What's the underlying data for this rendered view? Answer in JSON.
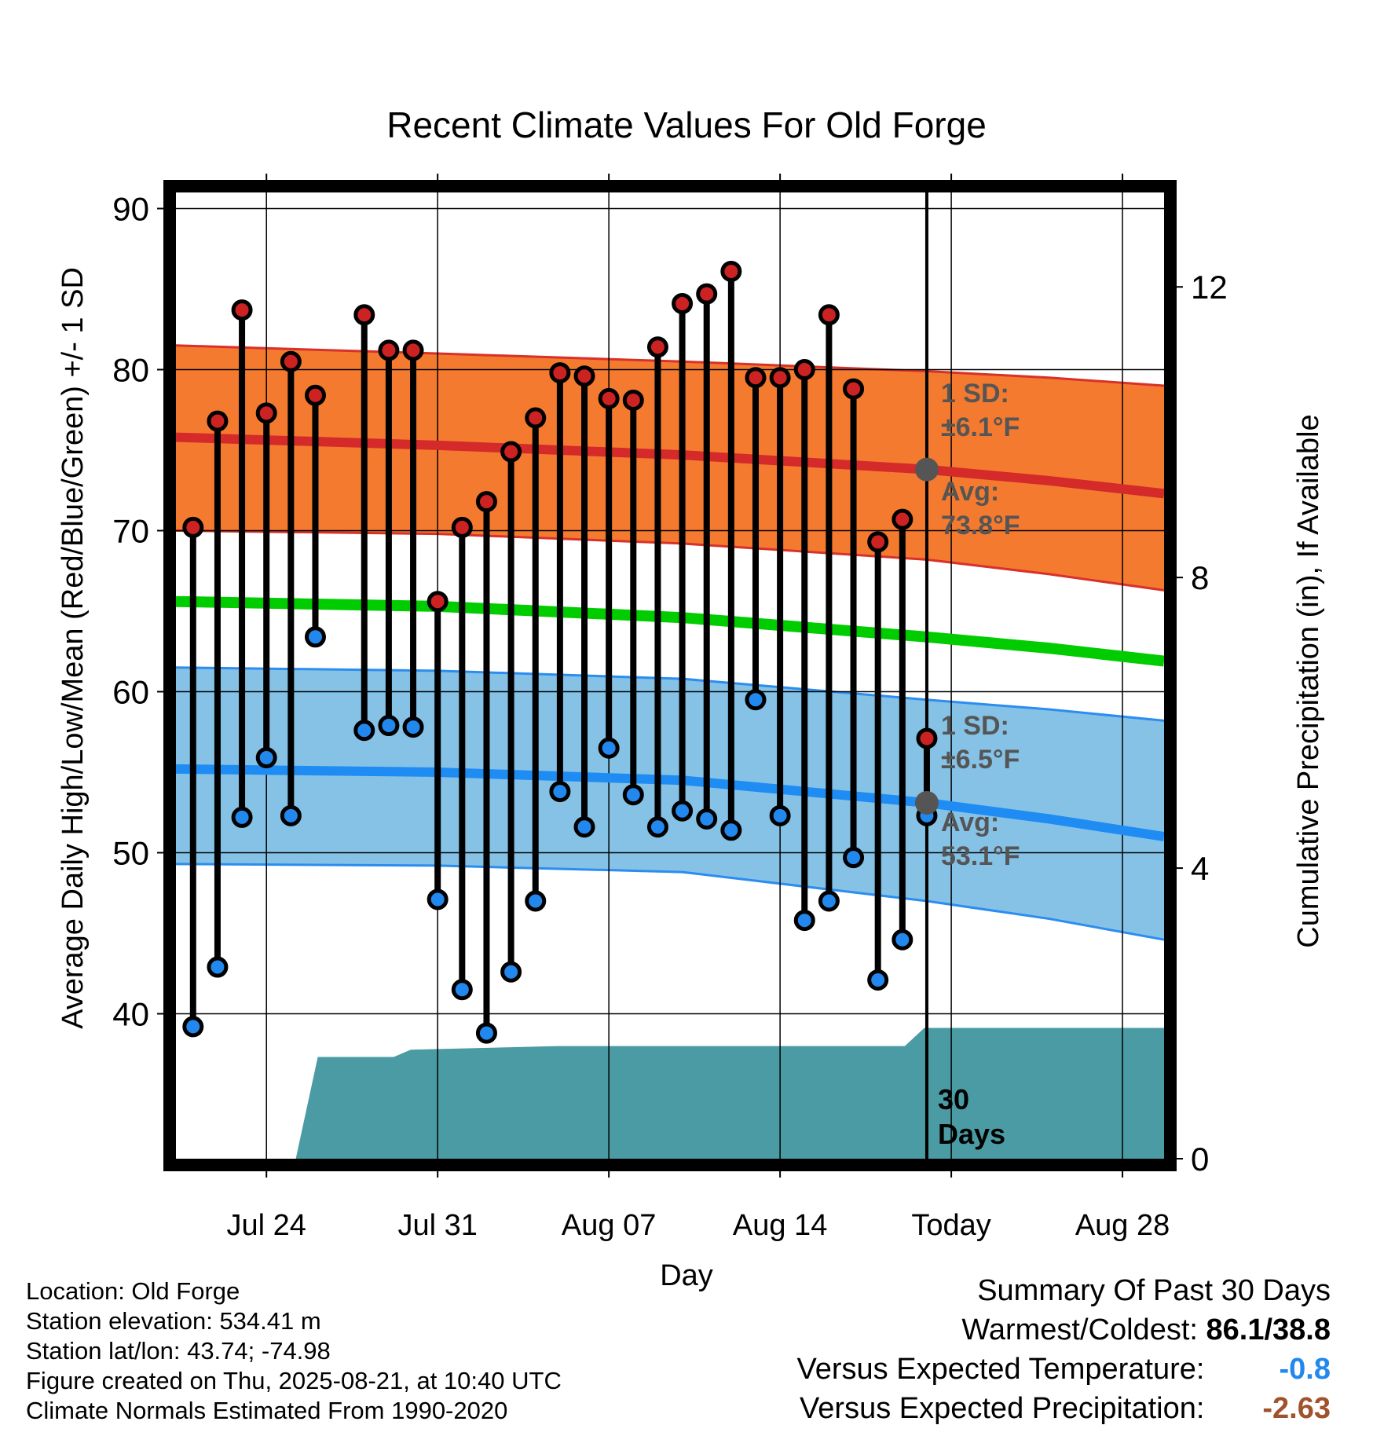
{
  "chart_data": {
    "type": "line",
    "title": "Recent Climate Values For Old Forge",
    "xlabel": "Day",
    "ylabel": "Average Daily High/Low/Mean (Red/Blue/Green) +/- 1 SD",
    "ylabel2": "Cumulative Precipitation (in), If Available",
    "ylim": [
      31,
      91
    ],
    "y2lim": [
      0,
      13.3
    ],
    "grid": true,
    "x_tick_labels": [
      "Jul 24",
      "Jul 31",
      "Aug 07",
      "Aug 14",
      "Today",
      "Aug 28"
    ],
    "y_tick_labels": [
      "40",
      "50",
      "60",
      "70",
      "80",
      "90"
    ],
    "y2_tick_labels": [
      "0",
      "4",
      "8",
      "12"
    ],
    "today_index": 30,
    "day_range": [
      -0.7,
      39.7
    ],
    "daily": {
      "days": [
        0,
        1,
        2,
        3,
        4,
        5,
        6,
        7,
        8,
        9,
        10,
        11,
        12,
        13,
        14,
        15,
        16,
        17,
        18,
        19,
        20,
        21,
        22,
        23,
        24,
        25,
        26,
        27,
        28,
        29
      ],
      "high": [
        70.2,
        76.8,
        83.7,
        77.3,
        80.5,
        78.4,
        null,
        83.4,
        81.2,
        81.2,
        65.6,
        70.2,
        71.8,
        74.9,
        77.0,
        79.8,
        79.6,
        78.2,
        78.1,
        81.4,
        84.1,
        84.7,
        86.1,
        79.5,
        79.5,
        80.0,
        83.4,
        78.8,
        69.3,
        70.7
      ],
      "low": [
        39.2,
        42.9,
        52.2,
        55.9,
        52.3,
        63.4,
        null,
        57.6,
        57.9,
        57.8,
        47.1,
        41.5,
        38.8,
        42.6,
        47.0,
        53.8,
        51.6,
        56.5,
        53.6,
        51.6,
        52.6,
        52.1,
        51.4,
        59.5,
        52.3,
        45.8,
        47.0,
        49.7,
        42.1,
        44.6
      ]
    },
    "daily_extra": {
      "day": 30,
      "high": 57.1,
      "low": 52.3
    },
    "normals": {
      "days": [
        -0.7,
        10,
        20,
        30,
        35,
        39.7
      ],
      "high_avg": [
        75.8,
        75.3,
        74.7,
        73.8,
        73.1,
        72.3
      ],
      "high_sd_upper": [
        81.5,
        81.0,
        80.5,
        79.9,
        79.5,
        79.0
      ],
      "high_sd_lower": [
        70.0,
        69.8,
        69.2,
        68.2,
        67.3,
        66.3
      ],
      "mean": [
        65.6,
        65.3,
        64.6,
        63.4,
        62.7,
        61.9
      ],
      "low_avg": [
        55.2,
        55.0,
        54.5,
        53.1,
        52.1,
        51.0
      ],
      "low_sd_upper": [
        61.5,
        61.3,
        60.8,
        59.5,
        58.9,
        58.2
      ],
      "low_sd_lower": [
        49.3,
        49.2,
        48.8,
        47.0,
        45.9,
        44.6
      ]
    },
    "precip": {
      "days": [
        -0.7,
        4.2,
        5.1,
        8.2,
        8.9,
        14.9,
        15.8,
        29.1,
        29.9,
        39.7
      ],
      "cumulative": [
        0,
        0,
        1.4,
        1.4,
        1.5,
        1.55,
        1.55,
        1.55,
        1.8,
        1.8
      ]
    },
    "annotations": {
      "high_sd_label": "1 SD:",
      "high_sd_value": "±6.1°F",
      "high_avg_label": "Avg:",
      "high_avg_value": "73.8°F",
      "low_sd_label": "1 SD:",
      "low_sd_value": "±6.5°F",
      "low_avg_label": "Avg:",
      "low_avg_value": "53.1°F",
      "period_number": "30",
      "period_unit": "Days"
    },
    "colors": {
      "high_band": "#f47a2f",
      "high_avg_line": "#d42a2a",
      "high_edge": "#d8312a",
      "low_band": "#85c2e6",
      "low_avg_line": "#1e8cf3",
      "low_edge": "#2b8df0",
      "mean_line": "#00cc00",
      "precip": "#4a9ba3",
      "high_marker": "#cc2222",
      "low_marker": "#2288ee",
      "annotation_text": "#555555",
      "avg_dot": "#555555"
    }
  },
  "info": {
    "location": "Location: Old Forge",
    "elevation": "Station elevation: 534.41 m",
    "latlon": "Station lat/lon: 43.74; -74.98",
    "created": "Figure created on Thu, 2025-08-21, at 10:40 UTC",
    "normals": "Climate Normals Estimated From 1990-2020"
  },
  "summary": {
    "title": "Summary Of Past 30 Days",
    "warm_cold_label": "Warmest/Coldest:",
    "warm_cold_value": "86.1/38.8",
    "temp_label": "Versus Expected Temperature:",
    "temp_value": "-0.8",
    "temp_color": "#2288ee",
    "precip_label": "Versus Expected Precipitation:",
    "precip_value": "-2.63",
    "precip_color": "#a0522d"
  }
}
